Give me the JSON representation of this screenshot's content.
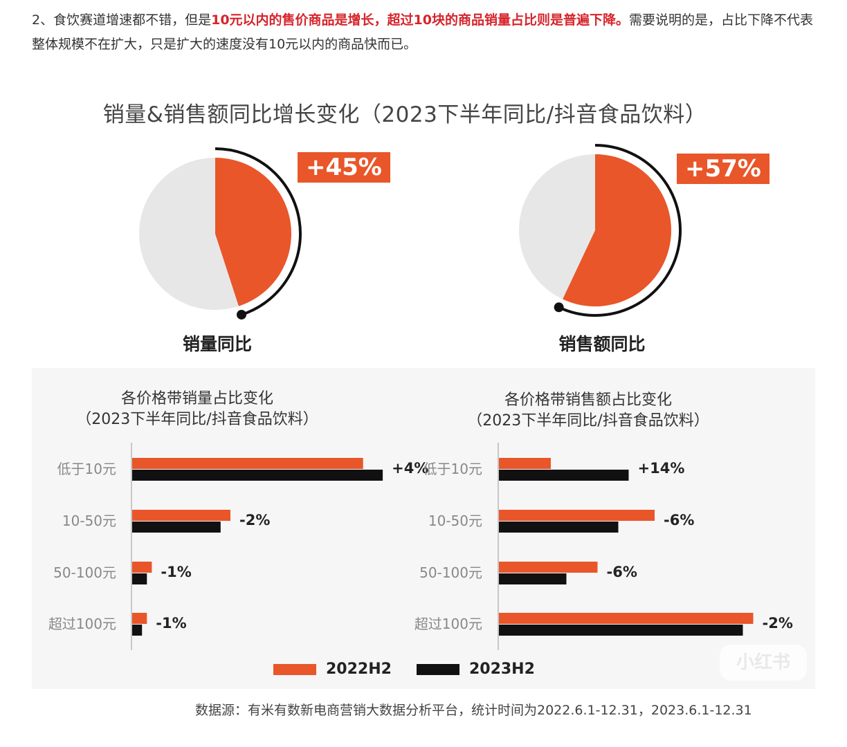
{
  "intro": {
    "t1": "2、食饮赛道增速都不错，但是",
    "t2": "10元以内的售价商品是增长，超过10块的商品销量占比则是普遍下降。",
    "t3": "需要说明的是，占比下降不代表整体规模不在扩大，只是扩大的速度没有10元以内的商品快而已。"
  },
  "chart_title": "销量&销售额同比增长变化（2023下半年同比/抖音食品饮料）",
  "colors": {
    "accent": "#e8562a",
    "dark": "#111111",
    "pie_bg": "#e7e7e7"
  },
  "chart_data": [
    {
      "type": "pie",
      "label": "销量同比",
      "value_percent": 45,
      "badge": "+45%"
    },
    {
      "type": "pie",
      "label": "销售额同比",
      "value_percent": 57,
      "badge": "+57%"
    },
    {
      "type": "bar",
      "orientation": "horizontal",
      "title": "各价格带销量占比变化",
      "subtitle": "（2023下半年同比/抖音食品饮料）",
      "categories": [
        "低于10元",
        "10-50元",
        "50-100元",
        "超过100元"
      ],
      "series": [
        {
          "name": "2022H2",
          "values": [
            47,
            20,
            4,
            3
          ]
        },
        {
          "name": "2023H2",
          "values": [
            51,
            18,
            3,
            2
          ]
        }
      ],
      "annotations": [
        "+4%",
        "-2%",
        "-1%",
        "-1%"
      ],
      "xlim": [
        0,
        60
      ]
    },
    {
      "type": "bar",
      "orientation": "horizontal",
      "title": "各价格带销售额占比变化",
      "subtitle": "（2023下半年同比/抖音食品饮料）",
      "categories": [
        "低于10元",
        "10-50元",
        "50-100元",
        "超过100元"
      ],
      "series": [
        {
          "name": "2022H2",
          "values": [
            10,
            30,
            19,
            49
          ]
        },
        {
          "name": "2023H2",
          "values": [
            25,
            23,
            13,
            47
          ]
        }
      ],
      "annotations": [
        "+14%",
        "-6%",
        "-6%",
        "-2%"
      ],
      "xlim": [
        0,
        55
      ]
    }
  ],
  "legend": {
    "a": "2022H2",
    "b": "2023H2"
  },
  "source": "数据源：有米有数新电商营销大数据分析平台，统计时间为2022.6.1-12.31，2023.6.1-12.31",
  "watermark": "小红书"
}
